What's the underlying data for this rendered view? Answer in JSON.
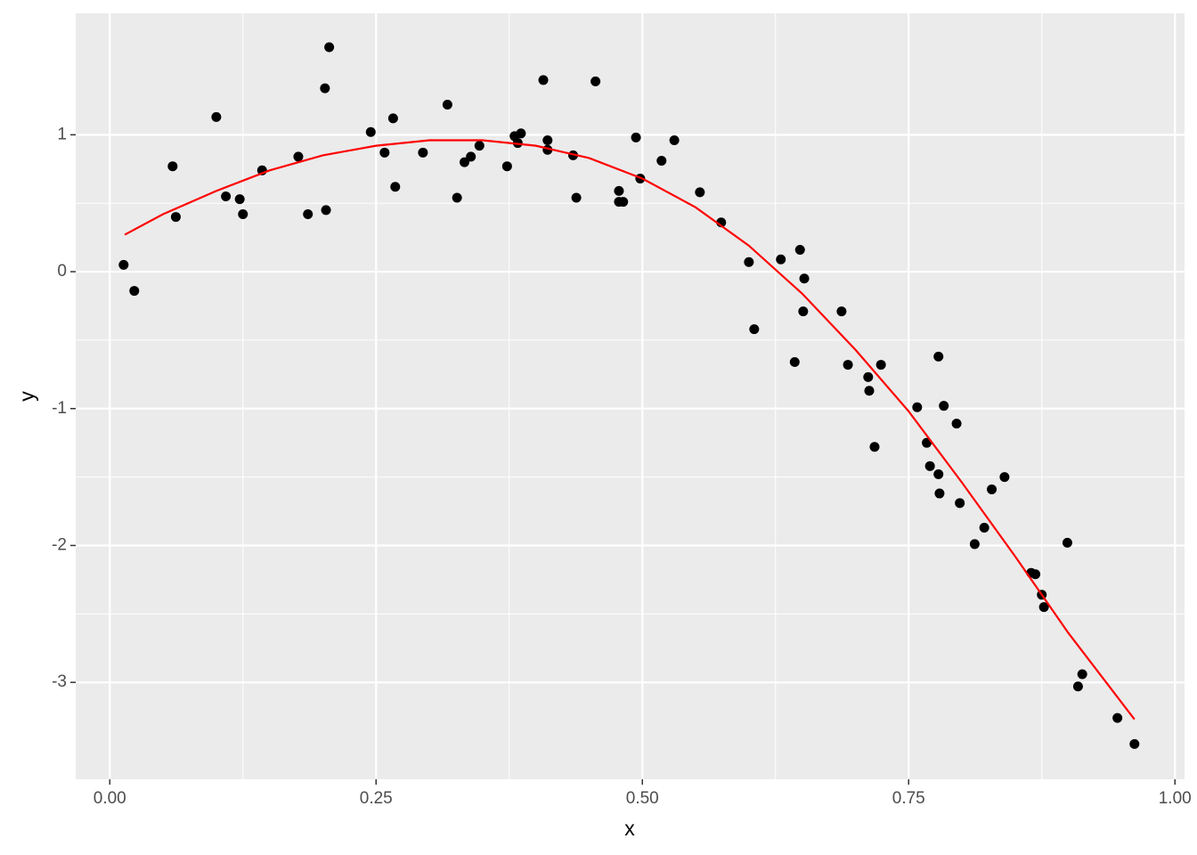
{
  "chart_data": {
    "type": "scatter",
    "x_label": "x",
    "y_label": "y",
    "x": [
      0.013,
      0.023,
      0.059,
      0.062,
      0.1,
      0.109,
      0.122,
      0.125,
      0.143,
      0.177,
      0.186,
      0.202,
      0.203,
      0.206,
      0.245,
      0.258,
      0.266,
      0.268,
      0.294,
      0.317,
      0.326,
      0.333,
      0.339,
      0.347,
      0.373,
      0.38,
      0.383,
      0.386,
      0.407,
      0.411,
      0.411,
      0.435,
      0.438,
      0.456,
      0.478,
      0.478,
      0.482,
      0.494,
      0.498,
      0.518,
      0.53,
      0.554,
      0.574,
      0.6,
      0.605,
      0.63,
      0.643,
      0.648,
      0.652,
      0.651,
      0.687,
      0.693,
      0.712,
      0.713,
      0.718,
      0.724,
      0.758,
      0.767,
      0.77,
      0.778,
      0.778,
      0.779,
      0.783,
      0.795,
      0.798,
      0.812,
      0.821,
      0.828,
      0.84,
      0.899,
      0.865,
      0.869,
      0.875,
      0.877,
      0.909,
      0.913,
      0.946,
      0.962
    ],
    "values": [
      0.05,
      -0.14,
      0.77,
      0.4,
      1.13,
      0.55,
      0.53,
      0.42,
      0.74,
      0.84,
      0.42,
      1.34,
      0.45,
      1.64,
      1.02,
      0.87,
      1.12,
      0.62,
      0.87,
      1.22,
      0.54,
      0.8,
      0.84,
      0.92,
      0.77,
      0.99,
      0.94,
      1.01,
      1.4,
      0.89,
      0.96,
      0.85,
      0.54,
      1.39,
      0.59,
      0.51,
      0.51,
      0.98,
      0.68,
      0.81,
      0.96,
      0.58,
      0.36,
      0.07,
      -0.42,
      0.09,
      -0.66,
      0.16,
      -0.05,
      -0.29,
      -0.29,
      -0.68,
      -0.77,
      -0.87,
      -1.28,
      -0.68,
      -0.99,
      -1.25,
      -1.42,
      -0.62,
      -1.48,
      -1.62,
      -0.98,
      -1.11,
      -1.69,
      -1.99,
      -1.87,
      -1.59,
      -1.5,
      -1.98,
      -2.2,
      -2.21,
      -2.36,
      -2.45,
      -3.03,
      -2.94,
      -3.26,
      -3.45
    ],
    "color": "#000000",
    "fit": {
      "color": "#ff0000",
      "x": [
        0.014,
        0.05,
        0.1,
        0.15,
        0.2,
        0.25,
        0.3,
        0.35,
        0.4,
        0.45,
        0.5,
        0.55,
        0.6,
        0.65,
        0.7,
        0.75,
        0.8,
        0.85,
        0.9,
        0.962
      ],
      "values": [
        0.27,
        0.42,
        0.59,
        0.74,
        0.85,
        0.92,
        0.96,
        0.96,
        0.92,
        0.83,
        0.68,
        0.47,
        0.19,
        -0.16,
        -0.57,
        -1.02,
        -1.54,
        -2.08,
        -2.64,
        -3.27
      ]
    },
    "xlim": [
      -0.032,
      1.009
    ],
    "ylim": [
      -3.708,
      1.887
    ],
    "xticks": [
      {
        "value": 0,
        "label": "0.00"
      },
      {
        "value": 0.25,
        "label": "0.25"
      },
      {
        "value": 0.5,
        "label": "0.50"
      },
      {
        "value": 0.75,
        "label": "0.75"
      },
      {
        "value": 1,
        "label": "1.00"
      }
    ],
    "yticks": [
      -3,
      -2,
      -1,
      0,
      1
    ],
    "grid": true,
    "minor_grid": true
  }
}
